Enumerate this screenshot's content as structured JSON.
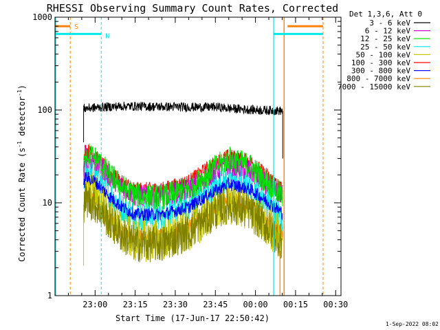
{
  "chart_data": {
    "type": "line",
    "title": "RHESSI Observing Summary Count Rates, Corrected",
    "xlabel": "Start Time (17-Jun-17 22:50:42)",
    "ylabel_parts": [
      "Corrected Count Rate (s",
      "-1",
      " detector",
      "-1",
      ")"
    ],
    "y_scale": "log",
    "ylim": [
      1,
      1000
    ],
    "xlim_minutes_from_2250": [
      -5,
      102
    ],
    "x_ticks": [
      {
        "label": "23:00",
        "m": 10
      },
      {
        "label": "23:15",
        "m": 25
      },
      {
        "label": "23:30",
        "m": 40
      },
      {
        "label": "23:45",
        "m": 55
      },
      {
        "label": "00:00",
        "m": 70
      },
      {
        "label": "00:15",
        "m": 85
      },
      {
        "label": "00:30",
        "m": 100
      }
    ],
    "y_ticks": [
      {
        "label": "1",
        "v": 1
      },
      {
        "label": "10",
        "v": 10
      },
      {
        "label": "100",
        "v": 100
      },
      {
        "label": "1000",
        "v": 1000
      }
    ],
    "legend_header": "Det 1,3,6, Att 0",
    "legend_placement": "right",
    "footer_date": "1-Sep-2022 08:02",
    "data_window_minutes": [
      5.7,
      80.2
    ],
    "series": [
      {
        "name": "3 - 6 keV",
        "color": "#000000",
        "amp": 1.5,
        "noise": 0.025,
        "x": [
          5.7,
          10,
          20,
          30,
          40,
          50,
          55,
          60,
          70,
          80
        ],
        "y": [
          104,
          106,
          110,
          109,
          108,
          107,
          108,
          104,
          100,
          98
        ]
      },
      {
        "name": "6 - 12 keV",
        "color": "#d400d4",
        "amp": 1.2,
        "noise": 0.06,
        "x": [
          5.7,
          6.3,
          10,
          15,
          20,
          25,
          35,
          45,
          55,
          60,
          68,
          75,
          80
        ],
        "y": [
          20,
          32,
          28,
          20,
          15,
          12,
          12,
          14,
          22,
          26,
          22,
          15,
          12
        ]
      },
      {
        "name": "12 - 25 keV",
        "color": "#00e000",
        "amp": 1.0,
        "noise": 0.07,
        "x": [
          5.7,
          6.3,
          10,
          15,
          20,
          25,
          35,
          45,
          55,
          60,
          68,
          75,
          80
        ],
        "y": [
          22,
          35,
          30,
          21,
          15,
          12,
          11.5,
          14,
          24,
          30,
          25,
          16,
          12
        ]
      },
      {
        "name": "25 - 50 keV",
        "color": "#00e8e8",
        "amp": 1.0,
        "noise": 0.08,
        "x": [
          5.7,
          6.3,
          10,
          15,
          20,
          25,
          35,
          45,
          55,
          60,
          68,
          75,
          80
        ],
        "y": [
          13,
          24,
          20,
          13,
          9,
          7.2,
          7.5,
          9.5,
          15,
          18,
          16,
          10,
          7
        ]
      },
      {
        "name": "50 - 100 keV",
        "color": "#c8c800",
        "amp": 0.8,
        "noise": 0.12,
        "x": [
          5.7,
          6.3,
          10,
          15,
          20,
          25,
          35,
          45,
          55,
          60,
          68,
          75,
          80
        ],
        "y": [
          9,
          14,
          12,
          7.5,
          5,
          4,
          4,
          5.2,
          8.5,
          10,
          8.5,
          5.5,
          4.2
        ]
      },
      {
        "name": "100 - 300 keV",
        "color": "#ff0000",
        "amp": 1.3,
        "noise": 0.04,
        "x": [
          5.7,
          6.3,
          10,
          15,
          20,
          25,
          35,
          45,
          55,
          60,
          68,
          75,
          80
        ],
        "y": [
          25,
          38,
          32,
          22,
          16.5,
          14,
          14,
          17,
          27,
          32,
          28,
          19,
          14
        ]
      },
      {
        "name": "300 - 800 keV",
        "color": "#0000ff",
        "amp": 1.8,
        "noise": 0.035,
        "x": [
          5.7,
          6.3,
          10,
          15,
          20,
          25,
          35,
          45,
          55,
          60,
          68,
          75,
          80
        ],
        "y": [
          14,
          19,
          17,
          12,
          9,
          7.5,
          7.5,
          9,
          13.5,
          16,
          14,
          10,
          7.8
        ]
      },
      {
        "name": "800 - 7000 keV",
        "color": "#ff8000",
        "amp": 1.8,
        "noise": 0.04,
        "x": [
          5.7,
          6.3,
          10,
          15,
          20,
          25,
          35,
          45,
          55,
          60,
          68,
          75,
          80
        ],
        "y": [
          9,
          12,
          10.5,
          7,
          5,
          4.2,
          4.4,
          5.5,
          9,
          11,
          9.5,
          6.2,
          4.6
        ]
      },
      {
        "name": "7000 - 15000 keV",
        "color": "#808000",
        "amp": 0.8,
        "noise": 0.1,
        "x": [
          5.7,
          6.3,
          10,
          15,
          20,
          25,
          35,
          45,
          55,
          60,
          68,
          75,
          80
        ],
        "y": [
          8,
          11,
          9.5,
          6.5,
          4.5,
          3.6,
          3.6,
          4.8,
          8,
          9.5,
          8,
          5.2,
          3.8
        ]
      }
    ],
    "markers": [
      {
        "label": "S",
        "color": "#ff8000",
        "bar_minutes": [
          -5,
          0.7
        ],
        "dashed_line_minutes": 0.7,
        "dashed_line_2_minutes": 95.3,
        "solid_line_minutes": 80.7,
        "bar2_minutes": [
          82,
          95.3
        ],
        "level": 800
      },
      {
        "label": "N",
        "color": "#00e8e8",
        "bar_minutes": [
          -5,
          12.3
        ],
        "dashed_line_minutes": 12.3,
        "solid_line_minutes_list": [
          -5,
          76.8
        ],
        "bar2_minutes": [
          76.8,
          95.3
        ],
        "level": 660
      }
    ]
  }
}
